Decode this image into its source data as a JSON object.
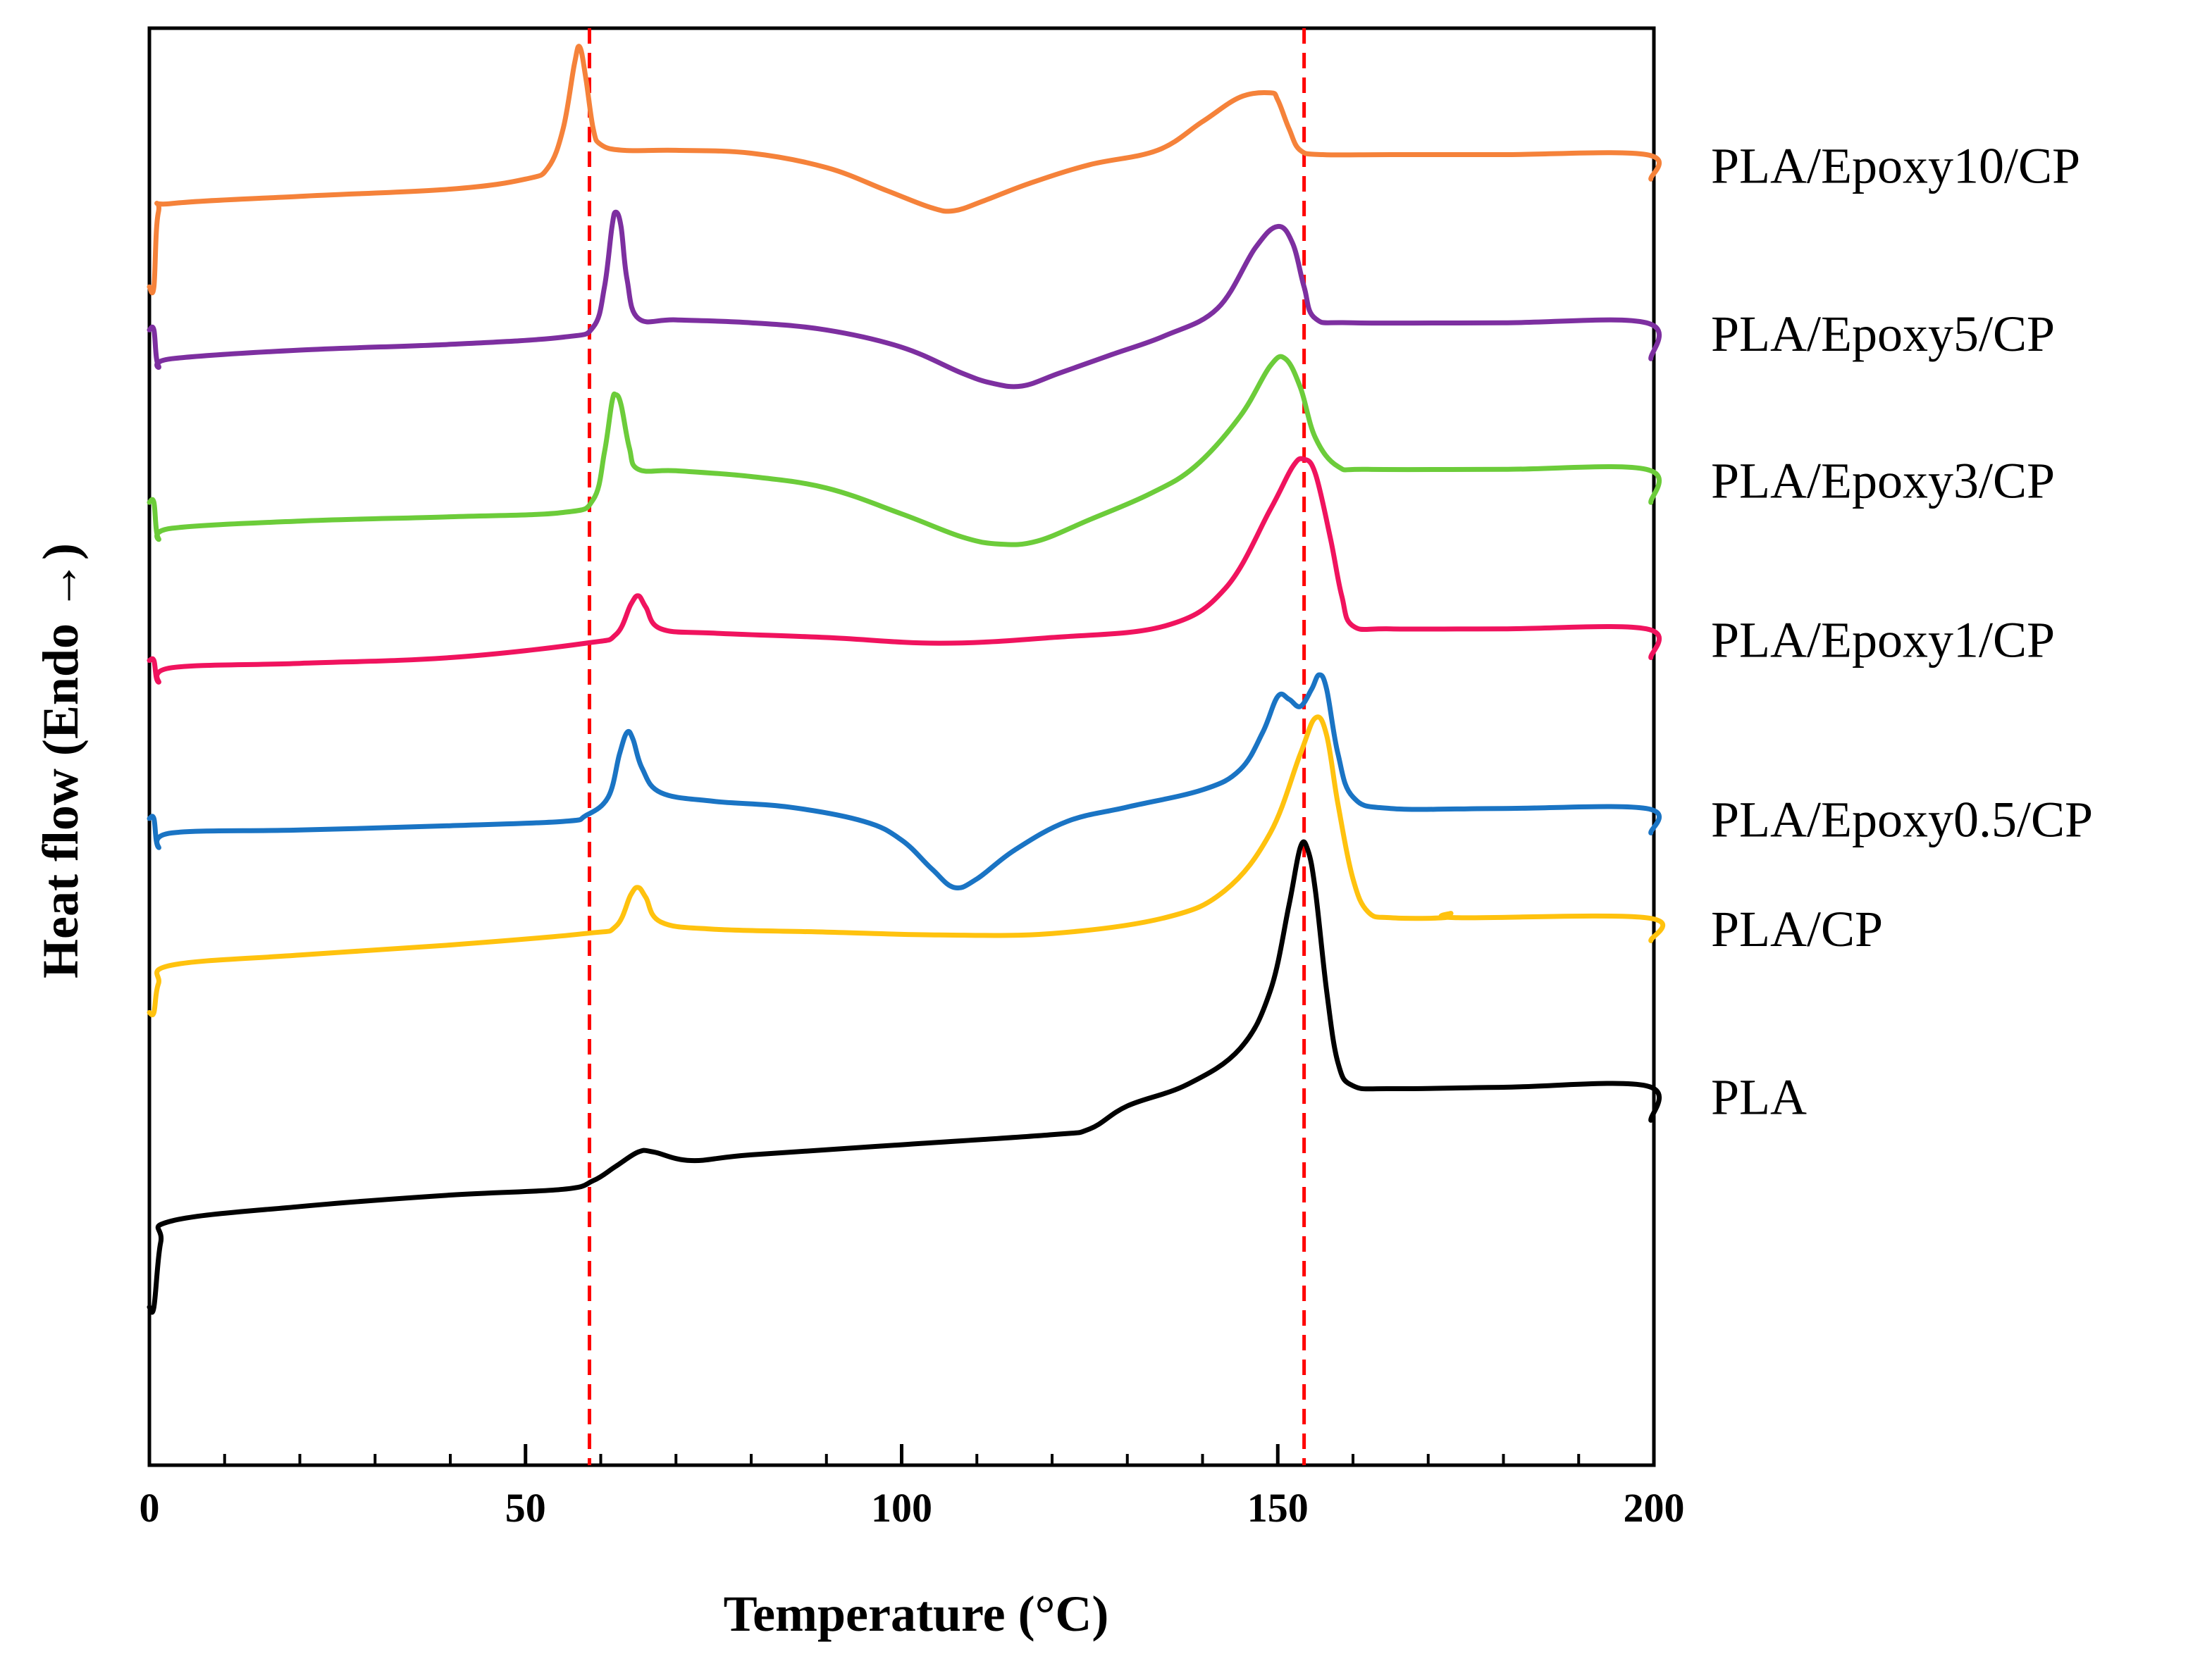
{
  "chart_data": {
    "type": "line",
    "title": "",
    "xlabel": "Temperature (°C)",
    "ylabel": "Heat flow (Endo →)",
    "xlim": [
      0,
      200
    ],
    "ylim": [
      0,
      10
    ],
    "x_ticks": [
      0,
      50,
      100,
      150,
      200
    ],
    "x_tick_labels": [
      "0",
      "50",
      "100",
      "150",
      "200"
    ],
    "x_minor_step": 10,
    "y_ticks_shown": false,
    "grid": false,
    "legend_placement": "right of each curve",
    "reference_lines": [
      {
        "axis": "x",
        "value": 58.5,
        "style": "dashed",
        "color": "#ff0000"
      },
      {
        "axis": "x",
        "value": 153.5,
        "style": "dashed",
        "color": "#ff0000"
      }
    ],
    "series": [
      {
        "name": "PLA/Epoxy10/CP",
        "color": "#f5823a",
        "points": [
          [
            0,
            8.2
          ],
          [
            0.6,
            8.2
          ],
          [
            1.2,
            8.72
          ],
          [
            3,
            8.78
          ],
          [
            20,
            8.83
          ],
          [
            40,
            8.88
          ],
          [
            50,
            8.95
          ],
          [
            53,
            9.03
          ],
          [
            55,
            9.3
          ],
          [
            56.5,
            9.75
          ],
          [
            57.2,
            9.87
          ],
          [
            58,
            9.66
          ],
          [
            59,
            9.3
          ],
          [
            60,
            9.19
          ],
          [
            63,
            9.15
          ],
          [
            70,
            9.15
          ],
          [
            80,
            9.13
          ],
          [
            90,
            9.03
          ],
          [
            98,
            8.87
          ],
          [
            104,
            8.75
          ],
          [
            107,
            8.73
          ],
          [
            111,
            8.8
          ],
          [
            117,
            8.92
          ],
          [
            125,
            9.05
          ],
          [
            134,
            9.15
          ],
          [
            140,
            9.35
          ],
          [
            145,
            9.52
          ],
          [
            149,
            9.55
          ],
          [
            150,
            9.5
          ],
          [
            151.5,
            9.3
          ],
          [
            153,
            9.15
          ],
          [
            156,
            9.12
          ],
          [
            165,
            9.12
          ],
          [
            180,
            9.12
          ],
          [
            199,
            9.12
          ],
          [
            199.6,
            8.95
          ]
        ]
      },
      {
        "name": "PLA/Epoxy5/CP",
        "color": "#7d2fa0",
        "points": [
          [
            0,
            7.9
          ],
          [
            0.6,
            7.9
          ],
          [
            1.2,
            7.65
          ],
          [
            3,
            7.7
          ],
          [
            20,
            7.76
          ],
          [
            40,
            7.8
          ],
          [
            55,
            7.85
          ],
          [
            59,
            7.92
          ],
          [
            60.5,
            8.2
          ],
          [
            61.5,
            8.62
          ],
          [
            62,
            8.72
          ],
          [
            62.7,
            8.62
          ],
          [
            63.5,
            8.25
          ],
          [
            65,
            7.98
          ],
          [
            70,
            7.97
          ],
          [
            80,
            7.95
          ],
          [
            90,
            7.9
          ],
          [
            100,
            7.78
          ],
          [
            108,
            7.6
          ],
          [
            112,
            7.53
          ],
          [
            116,
            7.51
          ],
          [
            121,
            7.6
          ],
          [
            128,
            7.73
          ],
          [
            135,
            7.86
          ],
          [
            142,
            8.05
          ],
          [
            147,
            8.47
          ],
          [
            150,
            8.62
          ],
          [
            152,
            8.5
          ],
          [
            153.5,
            8.2
          ],
          [
            155,
            7.98
          ],
          [
            160,
            7.95
          ],
          [
            180,
            7.95
          ],
          [
            199,
            7.95
          ],
          [
            199.6,
            7.7
          ]
        ]
      },
      {
        "name": "PLA/Epoxy3/CP",
        "color": "#6ccc3a",
        "points": [
          [
            0,
            6.7
          ],
          [
            0.6,
            6.7
          ],
          [
            1.2,
            6.45
          ],
          [
            3,
            6.52
          ],
          [
            20,
            6.57
          ],
          [
            40,
            6.6
          ],
          [
            55,
            6.63
          ],
          [
            59,
            6.72
          ],
          [
            60.5,
            7.05
          ],
          [
            61.5,
            7.4
          ],
          [
            62,
            7.45
          ],
          [
            62.7,
            7.38
          ],
          [
            63.8,
            7.08
          ],
          [
            65,
            6.93
          ],
          [
            70,
            6.92
          ],
          [
            80,
            6.88
          ],
          [
            90,
            6.8
          ],
          [
            100,
            6.62
          ],
          [
            108,
            6.46
          ],
          [
            113,
            6.41
          ],
          [
            118,
            6.43
          ],
          [
            125,
            6.58
          ],
          [
            133,
            6.76
          ],
          [
            139,
            6.95
          ],
          [
            145,
            7.3
          ],
          [
            149,
            7.65
          ],
          [
            151,
            7.7
          ],
          [
            153,
            7.5
          ],
          [
            155,
            7.15
          ],
          [
            158,
            6.95
          ],
          [
            162,
            6.93
          ],
          [
            180,
            6.93
          ],
          [
            199,
            6.93
          ],
          [
            199.6,
            6.7
          ]
        ]
      },
      {
        "name": "PLA/Epoxy1/CP",
        "color": "#f0135e",
        "points": [
          [
            0,
            5.6
          ],
          [
            0.6,
            5.6
          ],
          [
            1.2,
            5.45
          ],
          [
            3,
            5.55
          ],
          [
            20,
            5.58
          ],
          [
            40,
            5.62
          ],
          [
            58,
            5.72
          ],
          [
            62,
            5.78
          ],
          [
            64,
            5.99
          ],
          [
            65,
            6.05
          ],
          [
            66,
            5.97
          ],
          [
            68,
            5.82
          ],
          [
            75,
            5.79
          ],
          [
            90,
            5.76
          ],
          [
            105,
            5.72
          ],
          [
            120,
            5.76
          ],
          [
            135,
            5.84
          ],
          [
            143,
            6.1
          ],
          [
            149,
            6.65
          ],
          [
            152,
            6.95
          ],
          [
            153.5,
            7.0
          ],
          [
            155,
            6.9
          ],
          [
            157,
            6.45
          ],
          [
            158.5,
            6.05
          ],
          [
            160,
            5.84
          ],
          [
            165,
            5.82
          ],
          [
            180,
            5.82
          ],
          [
            199,
            5.82
          ],
          [
            199.6,
            5.62
          ]
        ]
      },
      {
        "name": "PLA/Epoxy0.5/CP",
        "color": "#1a74c4",
        "points": [
          [
            0,
            4.5
          ],
          [
            0.6,
            4.5
          ],
          [
            1.2,
            4.3
          ],
          [
            3,
            4.4
          ],
          [
            20,
            4.42
          ],
          [
            40,
            4.45
          ],
          [
            55,
            4.48
          ],
          [
            58,
            4.52
          ],
          [
            61,
            4.65
          ],
          [
            62.5,
            4.95
          ],
          [
            63.5,
            5.1
          ],
          [
            64.3,
            5.05
          ],
          [
            65.5,
            4.85
          ],
          [
            68,
            4.68
          ],
          [
            75,
            4.62
          ],
          [
            85,
            4.58
          ],
          [
            95,
            4.48
          ],
          [
            100,
            4.35
          ],
          [
            104,
            4.15
          ],
          [
            107,
            4.02
          ],
          [
            110,
            4.08
          ],
          [
            115,
            4.28
          ],
          [
            122,
            4.48
          ],
          [
            130,
            4.58
          ],
          [
            140,
            4.7
          ],
          [
            145,
            4.84
          ],
          [
            148,
            5.1
          ],
          [
            150,
            5.35
          ],
          [
            151.5,
            5.33
          ],
          [
            153,
            5.28
          ],
          [
            154.5,
            5.4
          ],
          [
            155.5,
            5.5
          ],
          [
            156.5,
            5.4
          ],
          [
            158,
            4.95
          ],
          [
            160,
            4.65
          ],
          [
            165,
            4.57
          ],
          [
            180,
            4.57
          ],
          [
            199,
            4.57
          ],
          [
            199.6,
            4.4
          ]
        ]
      },
      {
        "name": "PLA/CP",
        "color": "#ffc20e",
        "points": [
          [
            0,
            3.15
          ],
          [
            0.6,
            3.15
          ],
          [
            1.2,
            3.35
          ],
          [
            3,
            3.48
          ],
          [
            20,
            3.55
          ],
          [
            40,
            3.62
          ],
          [
            58,
            3.7
          ],
          [
            62,
            3.75
          ],
          [
            64,
            3.97
          ],
          [
            65,
            4.02
          ],
          [
            66,
            3.95
          ],
          [
            68,
            3.78
          ],
          [
            75,
            3.73
          ],
          [
            90,
            3.71
          ],
          [
            105,
            3.69
          ],
          [
            120,
            3.7
          ],
          [
            135,
            3.81
          ],
          [
            143,
            4.0
          ],
          [
            149,
            4.4
          ],
          [
            153,
            4.95
          ],
          [
            155,
            5.2
          ],
          [
            156.5,
            5.08
          ],
          [
            158,
            4.6
          ],
          [
            160,
            4.08
          ],
          [
            162,
            3.85
          ],
          [
            165,
            3.81
          ],
          [
            172,
            3.81
          ],
          [
            173,
            3.84
          ],
          [
            174,
            3.81
          ],
          [
            199,
            3.81
          ],
          [
            199.6,
            3.65
          ]
        ]
      },
      {
        "name": "PLA",
        "color": "#000000",
        "points": [
          [
            0,
            1.1
          ],
          [
            0.6,
            1.1
          ],
          [
            1.5,
            1.55
          ],
          [
            3,
            1.7
          ],
          [
            20,
            1.8
          ],
          [
            40,
            1.88
          ],
          [
            55,
            1.92
          ],
          [
            59,
            1.98
          ],
          [
            62,
            2.08
          ],
          [
            65,
            2.18
          ],
          [
            67,
            2.18
          ],
          [
            72,
            2.12
          ],
          [
            80,
            2.16
          ],
          [
            100,
            2.23
          ],
          [
            120,
            2.3
          ],
          [
            125,
            2.34
          ],
          [
            130,
            2.5
          ],
          [
            138,
            2.65
          ],
          [
            145,
            2.9
          ],
          [
            149,
            3.3
          ],
          [
            151.5,
            3.9
          ],
          [
            153,
            4.3
          ],
          [
            154,
            4.28
          ],
          [
            155,
            4.0
          ],
          [
            156.5,
            3.3
          ],
          [
            158,
            2.8
          ],
          [
            160,
            2.64
          ],
          [
            165,
            2.62
          ],
          [
            180,
            2.63
          ],
          [
            199,
            2.64
          ],
          [
            199.6,
            2.4
          ]
        ]
      }
    ]
  }
}
